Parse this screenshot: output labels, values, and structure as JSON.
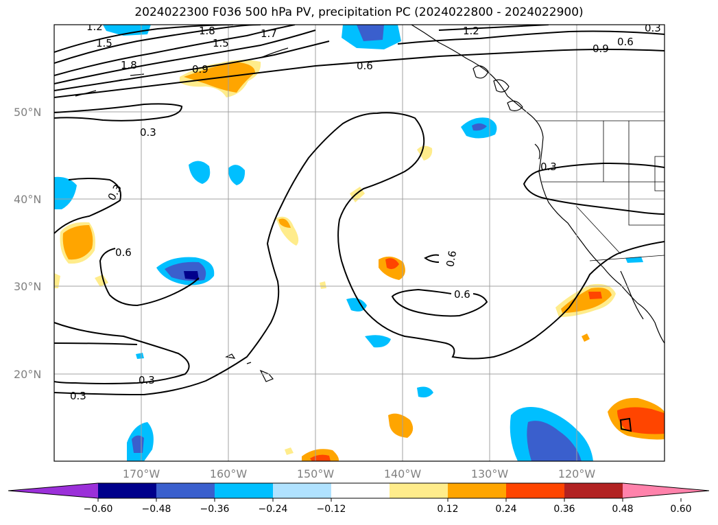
{
  "title": "2024022300 F036 500 hPa PV, precipitation PC (2024022800 - 2024022900)",
  "lat_labels": [
    "50°N",
    "40°N",
    "30°N",
    "20°N"
  ],
  "lon_labels": [
    "170°W",
    "160°W",
    "150°W",
    "140°W",
    "130°W",
    "120°W"
  ],
  "contour_labels": [
    "1.2",
    "1.8",
    "1.5",
    "1.7",
    "1.5",
    "1.8",
    "0.9",
    "0.6",
    "1.2",
    "0.9",
    "0.6",
    "0.3",
    "0.3",
    "0.3",
    "0.6",
    "0.3",
    "0.6",
    "0.6",
    "0.3",
    "0.3"
  ],
  "colorbar": {
    "colors": [
      "#9b30d9",
      "#00008b",
      "#3a5fcd",
      "#00bfff",
      "#b0e2ff",
      "#ffffff",
      "#ffec8b",
      "#ffa500",
      "#ff4500",
      "#b22222",
      "#ff82ab"
    ],
    "tick_labels": [
      "−0.60",
      "−0.48",
      "−0.36",
      "−0.24",
      "−0.12",
      "0.12",
      "0.24",
      "0.36",
      "0.48",
      "0.60"
    ]
  }
}
